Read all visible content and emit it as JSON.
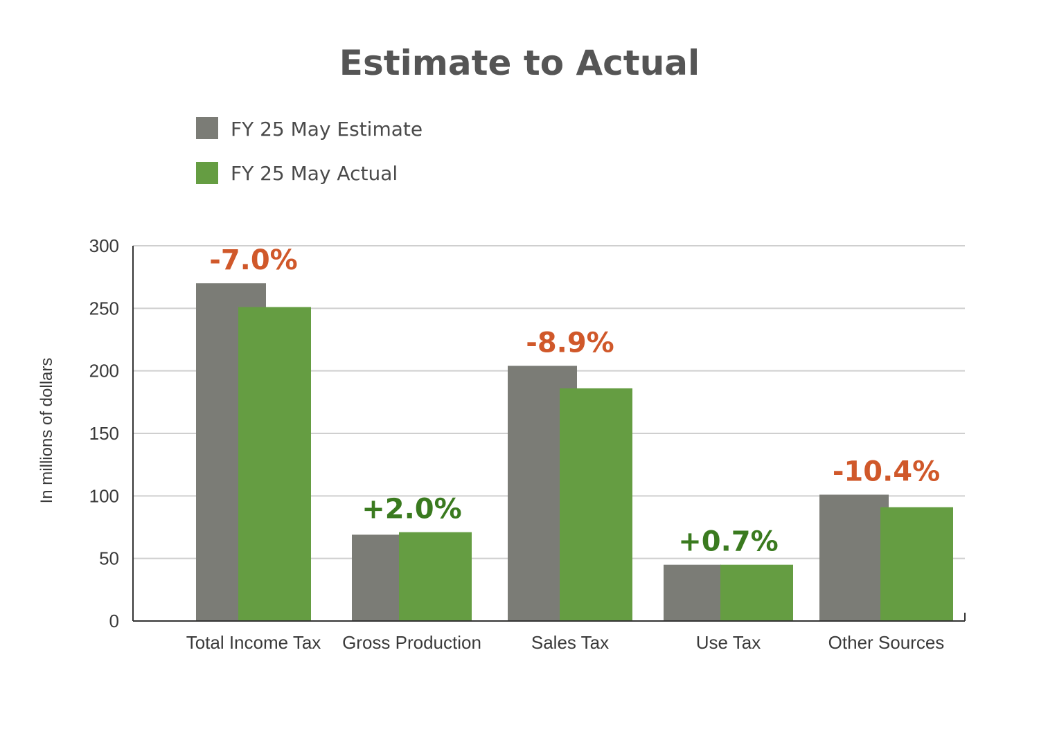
{
  "colors": {
    "estimate": "#7b7c76",
    "actual": "#659d42",
    "negative": "#d0582a",
    "positive": "#3a7a1f",
    "grid": "#cfcfcf",
    "axis": "#333333"
  },
  "chart_data": {
    "type": "bar",
    "title": "Estimate to Actual",
    "ylabel": "In millions of dollars",
    "xlabel": "",
    "ylim": [
      0,
      300
    ],
    "yticks": [
      0,
      50,
      100,
      150,
      200,
      250,
      300
    ],
    "grid": true,
    "legend_position": "top-left",
    "categories": [
      "Total Income Tax",
      "Gross Production",
      "Sales Tax",
      "Use Tax",
      "Other Sources"
    ],
    "series": [
      {
        "name": "FY 25 May Estimate",
        "values": [
          270,
          69,
          204,
          45,
          101
        ]
      },
      {
        "name": "FY 25 May Actual",
        "values": [
          251,
          71,
          186,
          45,
          91
        ]
      }
    ],
    "annotations": [
      {
        "text": "-7.0%",
        "sign": "negative"
      },
      {
        "text": "+2.0%",
        "sign": "positive"
      },
      {
        "text": "-8.9%",
        "sign": "negative"
      },
      {
        "text": "+0.7%",
        "sign": "positive"
      },
      {
        "text": "-10.4%",
        "sign": "negative"
      }
    ]
  }
}
